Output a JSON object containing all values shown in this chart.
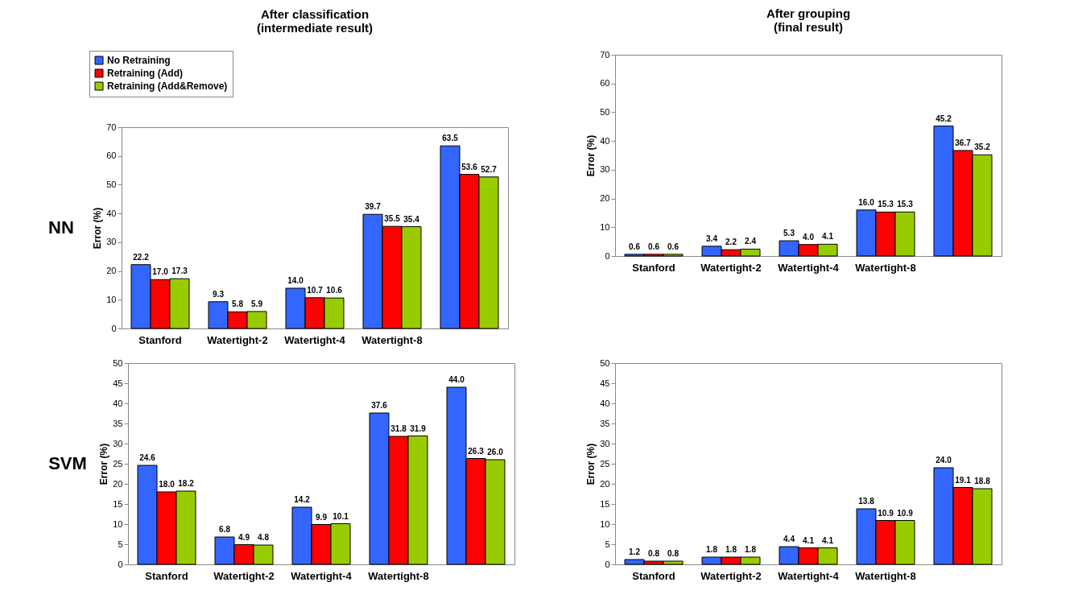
{
  "chart_data": [
    {
      "type": "bar",
      "title": "After classification\n(intermediate result)",
      "ylabel": "Error (%)",
      "categories": [
        "Stanford",
        "Watertight-2",
        "Watertight-4",
        "Watertight-8",
        null
      ],
      "annotations": [
        "NN"
      ],
      "legend": "top left",
      "ylim": [
        0,
        70
      ],
      "yticks": [
        0,
        10,
        20,
        30,
        40,
        50,
        60,
        70
      ],
      "series": [
        {
          "name": "No Retraining",
          "color": "#3366ff",
          "values": [
            22.2,
            9.3,
            14.0,
            39.7,
            63.5
          ],
          "value_labels": [
            "22.2",
            "9.3",
            "14.0",
            "39.7",
            "63.5"
          ]
        },
        {
          "name": "Retraining (Add)",
          "color": "#ff0000",
          "values": [
            17.0,
            5.8,
            10.7,
            35.5,
            53.6
          ],
          "value_labels": [
            "17.0",
            "5.8",
            "10.7",
            "35.5",
            "53.6"
          ]
        },
        {
          "name": "Retraining (Add&Remove)",
          "color": "#99cc00",
          "values": [
            17.3,
            5.9,
            10.6,
            35.4,
            52.7
          ],
          "value_labels": [
            "17.3",
            "5.9",
            "10.6",
            "35.4",
            "52.7"
          ]
        }
      ]
    },
    {
      "type": "bar",
      "title": "After grouping\n(final result)",
      "ylabel": "Error (%)",
      "categories": [
        "Stanford",
        "Watertight-2",
        "Watertight-4",
        "Watertight-8",
        null
      ],
      "ylim": [
        0,
        70
      ],
      "yticks": [
        0,
        10,
        20,
        30,
        40,
        50,
        60,
        70
      ],
      "series": [
        {
          "color": "#3366ff",
          "values": [
            0.6,
            3.4,
            5.3,
            16.0,
            45.2
          ],
          "value_labels": [
            "0.6",
            "3.4",
            "5.3",
            "16.0",
            "45.2"
          ]
        },
        {
          "color": "#ff0000",
          "values": [
            0.6,
            2.2,
            4.0,
            15.3,
            36.7
          ],
          "value_labels": [
            "0.6",
            "2.2",
            "4.0",
            "15.3",
            "36.7"
          ]
        },
        {
          "color": "#99cc00",
          "values": [
            0.6,
            2.4,
            4.1,
            15.3,
            35.2
          ],
          "value_labels": [
            "0.6",
            "2.4",
            "4.1",
            "15.3",
            "35.2"
          ]
        }
      ]
    },
    {
      "type": "bar",
      "ylabel": "Error (%)",
      "categories": [
        "Stanford",
        "Watertight-2",
        "Watertight-4",
        "Watertight-8",
        null
      ],
      "annotations": [
        "SVM"
      ],
      "ylim": [
        0,
        50
      ],
      "yticks": [
        0,
        5,
        10,
        15,
        20,
        25,
        30,
        35,
        40,
        45,
        50
      ],
      "series": [
        {
          "color": "#3366ff",
          "values": [
            24.6,
            6.8,
            14.2,
            37.6,
            44.0
          ],
          "value_labels": [
            "24.6",
            "6.8",
            "14.2",
            "37.6",
            "44.0"
          ]
        },
        {
          "color": "#ff0000",
          "values": [
            18.0,
            4.9,
            9.9,
            31.8,
            26.3
          ],
          "value_labels": [
            "18.0",
            "4.9",
            "9.9",
            "31.8",
            "26.3"
          ]
        },
        {
          "color": "#99cc00",
          "values": [
            18.2,
            4.8,
            10.1,
            31.9,
            26.0
          ],
          "value_labels": [
            "18.2",
            "4.8",
            "10.1",
            "31.9",
            "26.0"
          ]
        }
      ]
    },
    {
      "type": "bar",
      "ylabel": "Error (%)",
      "categories": [
        "Stanford",
        "Watertight-2",
        "Watertight-4",
        "Watertight-8",
        null
      ],
      "ylim": [
        0,
        50
      ],
      "yticks": [
        0,
        5,
        10,
        15,
        20,
        25,
        30,
        35,
        40,
        45,
        50
      ],
      "series": [
        {
          "color": "#3366ff",
          "values": [
            1.2,
            1.8,
            4.4,
            13.8,
            24.0
          ],
          "value_labels": [
            "1.2",
            "1.8",
            "4.4",
            "13.8",
            "24.0"
          ]
        },
        {
          "color": "#ff0000",
          "values": [
            0.8,
            1.8,
            4.1,
            10.9,
            19.1
          ],
          "value_labels": [
            "0.8",
            "1.8",
            "4.1",
            "10.9",
            "19.1"
          ]
        },
        {
          "color": "#99cc00",
          "values": [
            0.8,
            1.8,
            4.1,
            10.9,
            18.8
          ],
          "value_labels": [
            "0.8",
            "1.8",
            "4.1",
            "10.9",
            "18.8"
          ]
        }
      ]
    }
  ]
}
